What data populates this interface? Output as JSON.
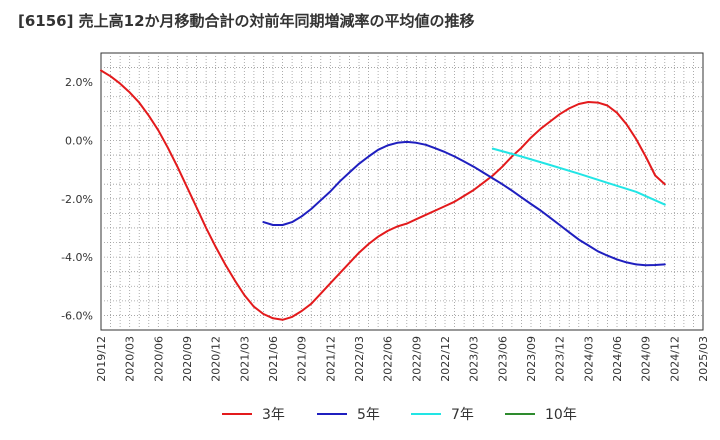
{
  "chart_data": {
    "type": "line",
    "title": "[6156]  売上高12か月移動合計の対前年同期増減率の平均値の推移",
    "xlabel": "",
    "ylabel": "",
    "ylim": [
      -6.5,
      3.0
    ],
    "y_ticks": [
      "2.0%",
      "0.0%",
      "-2.0%",
      "-4.0%",
      "-6.0%"
    ],
    "y_tick_values": [
      2,
      0,
      -2,
      -4,
      -6
    ],
    "x_ticks": [
      "2019/12",
      "2020/03",
      "2020/06",
      "2020/09",
      "2020/12",
      "2021/03",
      "2021/06",
      "2021/09",
      "2021/12",
      "2022/03",
      "2022/06",
      "2022/09",
      "2022/12",
      "2023/03",
      "2023/06",
      "2023/09",
      "2023/12",
      "2024/03",
      "2024/06",
      "2024/09",
      "2024/12",
      "2025/03"
    ],
    "grid": true,
    "legend_position": "bottom",
    "series": [
      {
        "name": "3年",
        "color": "#e31a1c",
        "points": [
          [
            "2019/12",
            2.4
          ],
          [
            "2020/01",
            2.2
          ],
          [
            "2020/02",
            1.95
          ],
          [
            "2020/03",
            1.65
          ],
          [
            "2020/04",
            1.3
          ],
          [
            "2020/05",
            0.85
          ],
          [
            "2020/06",
            0.35
          ],
          [
            "2020/07",
            -0.25
          ],
          [
            "2020/08",
            -0.9
          ],
          [
            "2020/09",
            -1.6
          ],
          [
            "2020/10",
            -2.3
          ],
          [
            "2020/11",
            -3.0
          ],
          [
            "2020/12",
            -3.65
          ],
          [
            "2021/01",
            -4.25
          ],
          [
            "2021/02",
            -4.8
          ],
          [
            "2021/03",
            -5.3
          ],
          [
            "2021/04",
            -5.7
          ],
          [
            "2021/05",
            -5.95
          ],
          [
            "2021/06",
            -6.1
          ],
          [
            "2021/07",
            -6.15
          ],
          [
            "2021/08",
            -6.05
          ],
          [
            "2021/09",
            -5.85
          ],
          [
            "2021/10",
            -5.6
          ],
          [
            "2021/11",
            -5.25
          ],
          [
            "2021/12",
            -4.9
          ],
          [
            "2022/01",
            -4.55
          ],
          [
            "2022/02",
            -4.2
          ],
          [
            "2022/03",
            -3.85
          ],
          [
            "2022/04",
            -3.55
          ],
          [
            "2022/05",
            -3.3
          ],
          [
            "2022/06",
            -3.1
          ],
          [
            "2022/07",
            -2.95
          ],
          [
            "2022/08",
            -2.85
          ],
          [
            "2022/09",
            -2.7
          ],
          [
            "2022/10",
            -2.55
          ],
          [
            "2022/11",
            -2.4
          ],
          [
            "2022/12",
            -2.25
          ],
          [
            "2023/01",
            -2.1
          ],
          [
            "2023/02",
            -1.9
          ],
          [
            "2023/03",
            -1.7
          ],
          [
            "2023/04",
            -1.45
          ],
          [
            "2023/05",
            -1.2
          ],
          [
            "2023/06",
            -0.9
          ],
          [
            "2023/07",
            -0.55
          ],
          [
            "2023/08",
            -0.25
          ],
          [
            "2023/09",
            0.1
          ],
          [
            "2023/10",
            0.4
          ],
          [
            "2023/11",
            0.65
          ],
          [
            "2023/12",
            0.9
          ],
          [
            "2024/01",
            1.1
          ],
          [
            "2024/02",
            1.25
          ],
          [
            "2024/03",
            1.32
          ],
          [
            "2024/04",
            1.3
          ],
          [
            "2024/05",
            1.2
          ],
          [
            "2024/06",
            0.95
          ],
          [
            "2024/07",
            0.55
          ],
          [
            "2024/08",
            0.05
          ],
          [
            "2024/09",
            -0.55
          ],
          [
            "2024/10",
            -1.2
          ],
          [
            "2024/11",
            -1.5
          ]
        ]
      },
      {
        "name": "5年",
        "color": "#1f1fbf",
        "points": [
          [
            "2021/05",
            -2.8
          ],
          [
            "2021/06",
            -2.9
          ],
          [
            "2021/07",
            -2.9
          ],
          [
            "2021/08",
            -2.8
          ],
          [
            "2021/09",
            -2.6
          ],
          [
            "2021/10",
            -2.35
          ],
          [
            "2021/11",
            -2.05
          ],
          [
            "2021/12",
            -1.75
          ],
          [
            "2022/01",
            -1.4
          ],
          [
            "2022/02",
            -1.1
          ],
          [
            "2022/03",
            -0.8
          ],
          [
            "2022/04",
            -0.55
          ],
          [
            "2022/05",
            -0.32
          ],
          [
            "2022/06",
            -0.17
          ],
          [
            "2022/07",
            -0.08
          ],
          [
            "2022/08",
            -0.05
          ],
          [
            "2022/09",
            -0.08
          ],
          [
            "2022/10",
            -0.15
          ],
          [
            "2022/11",
            -0.27
          ],
          [
            "2022/12",
            -0.4
          ],
          [
            "2023/01",
            -0.55
          ],
          [
            "2023/02",
            -0.72
          ],
          [
            "2023/03",
            -0.9
          ],
          [
            "2023/04",
            -1.1
          ],
          [
            "2023/05",
            -1.3
          ],
          [
            "2023/06",
            -1.5
          ],
          [
            "2023/07",
            -1.72
          ],
          [
            "2023/08",
            -1.95
          ],
          [
            "2023/09",
            -2.18
          ],
          [
            "2023/10",
            -2.4
          ],
          [
            "2023/11",
            -2.65
          ],
          [
            "2023/12",
            -2.9
          ],
          [
            "2024/01",
            -3.15
          ],
          [
            "2024/02",
            -3.4
          ],
          [
            "2024/03",
            -3.6
          ],
          [
            "2024/04",
            -3.8
          ],
          [
            "2024/05",
            -3.95
          ],
          [
            "2024/06",
            -4.08
          ],
          [
            "2024/07",
            -4.18
          ],
          [
            "2024/08",
            -4.25
          ],
          [
            "2024/09",
            -4.28
          ],
          [
            "2024/10",
            -4.27
          ],
          [
            "2024/11",
            -4.25
          ]
        ]
      },
      {
        "name": "7年",
        "color": "#22e5e5",
        "points": [
          [
            "2023/05",
            -0.28
          ],
          [
            "2023/08",
            -0.55
          ],
          [
            "2023/11",
            -0.84
          ],
          [
            "2024/02",
            -1.14
          ],
          [
            "2024/05",
            -1.45
          ],
          [
            "2024/08",
            -1.76
          ],
          [
            "2024/11",
            -2.2
          ]
        ]
      },
      {
        "name": "10年",
        "color": "#2e8b2e",
        "points": []
      }
    ]
  }
}
